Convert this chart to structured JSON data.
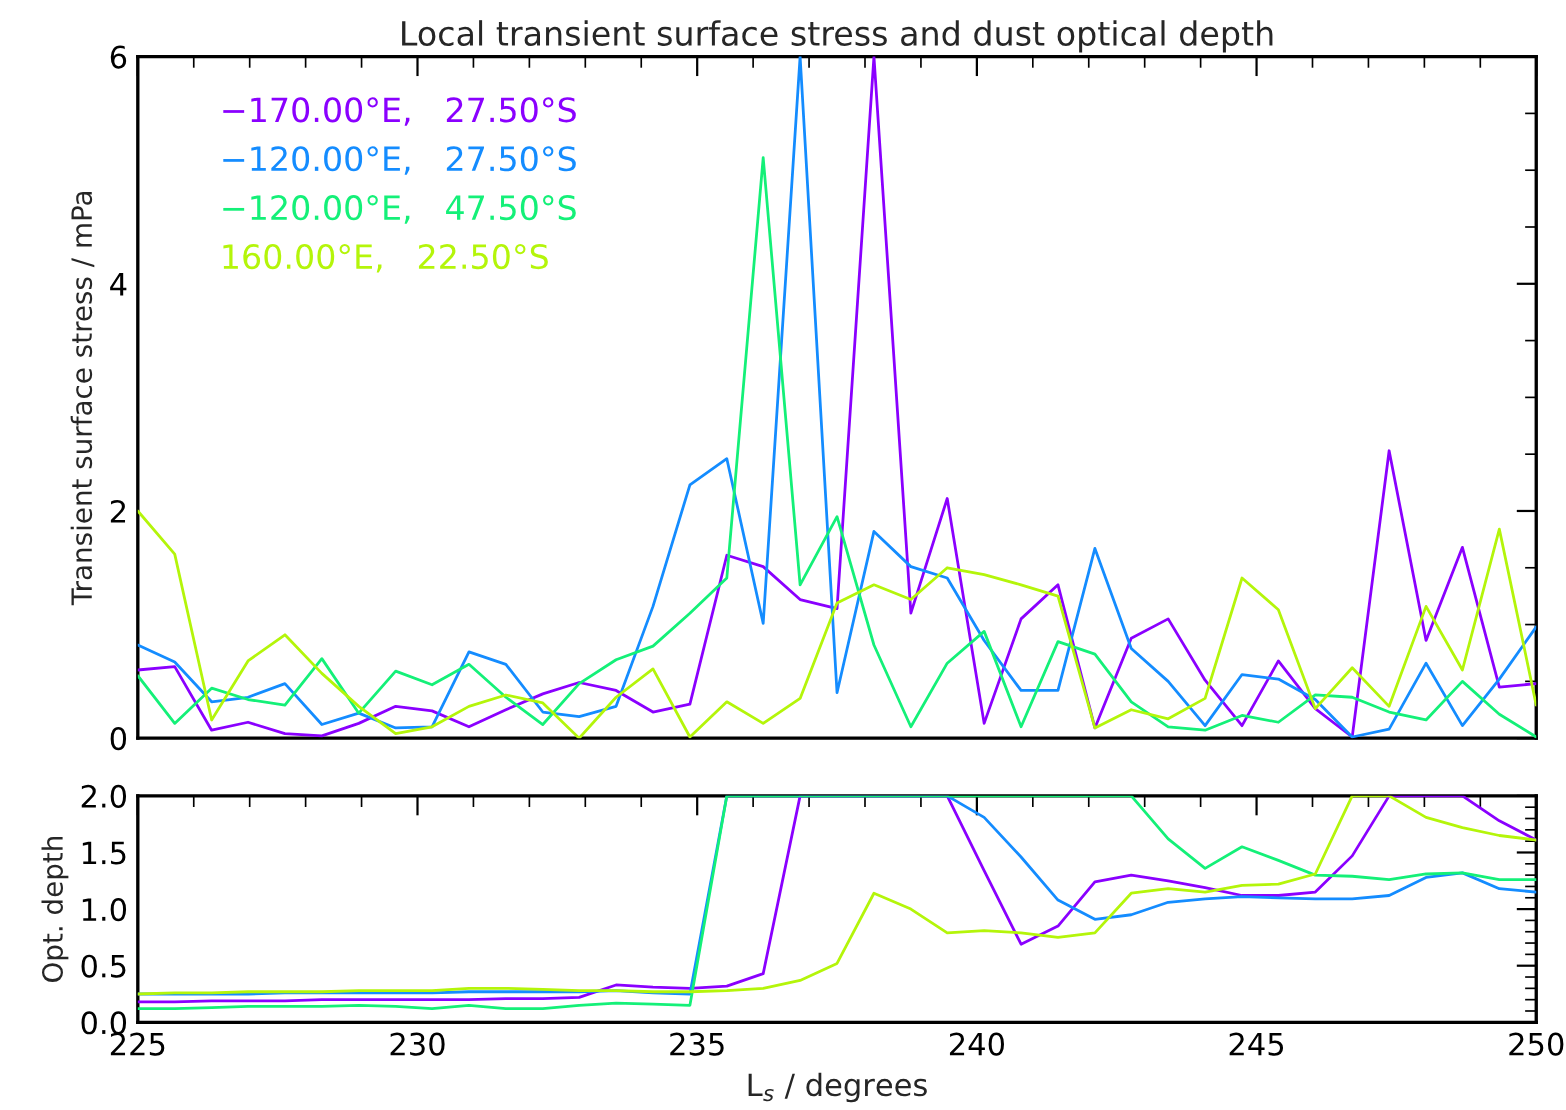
{
  "chart_data": [
    {
      "type": "line",
      "title": "Local transient surface stress and dust optical depth",
      "ylabel": "Transient surface stress / mPa",
      "x": [
        225.0,
        225.66,
        226.32,
        226.97,
        227.63,
        228.29,
        228.95,
        229.61,
        230.26,
        230.92,
        231.58,
        232.24,
        232.89,
        233.55,
        234.21,
        234.87,
        235.53,
        236.18,
        236.84,
        237.5,
        238.16,
        238.82,
        239.47,
        240.13,
        240.79,
        241.45,
        242.11,
        242.76,
        243.42,
        244.08,
        244.74,
        245.39,
        246.05,
        246.71,
        247.37,
        248.03,
        248.68,
        249.34,
        250.0
      ],
      "xlim": [
        225,
        250
      ],
      "xticks": [
        225,
        230,
        235,
        240,
        245,
        250
      ],
      "ylim": [
        0,
        6
      ],
      "yticks": [
        0,
        2,
        4,
        6
      ],
      "tick_labels": "y",
      "legend": "top left",
      "grid": false,
      "series": [
        {
          "name": "−170.00°E,   27.50°S",
          "color": "#8a00ff",
          "values": [
            0.6,
            0.63,
            0.07,
            0.14,
            0.04,
            0.02,
            0.13,
            0.28,
            0.24,
            0.1,
            0.25,
            0.39,
            0.49,
            0.42,
            0.23,
            0.3,
            1.61,
            1.51,
            1.22,
            1.14,
            6.0,
            1.1,
            2.11,
            0.13,
            1.05,
            1.35,
            0.09,
            0.88,
            1.05,
            0.51,
            0.11,
            0.68,
            0.26,
            0.01,
            2.53,
            0.86,
            1.68,
            0.45,
            0.48
          ]
        },
        {
          "name": "−120.00°E,   27.50°S",
          "color": "#148cff",
          "values": [
            0.82,
            0.67,
            0.32,
            0.36,
            0.48,
            0.12,
            0.22,
            0.09,
            0.1,
            0.76,
            0.65,
            0.23,
            0.19,
            0.28,
            1.16,
            2.23,
            2.46,
            1.01,
            6.0,
            0.4,
            1.82,
            1.51,
            1.41,
            0.86,
            0.42,
            0.42,
            1.67,
            0.79,
            0.5,
            0.11,
            0.56,
            0.52,
            0.34,
            0.01,
            0.08,
            0.66,
            0.11,
            0.52,
            0.98
          ]
        },
        {
          "name": "−120.00°E,   47.50°S",
          "color": "#14f078",
          "values": [
            0.55,
            0.13,
            0.44,
            0.34,
            0.29,
            0.7,
            0.22,
            0.59,
            0.47,
            0.65,
            0.36,
            0.12,
            0.48,
            0.69,
            0.81,
            1.1,
            1.41,
            5.11,
            1.35,
            1.95,
            0.82,
            0.1,
            0.66,
            0.94,
            0.1,
            0.85,
            0.74,
            0.32,
            0.1,
            0.07,
            0.2,
            0.14,
            0.38,
            0.36,
            0.23,
            0.16,
            0.5,
            0.21,
            0.01
          ]
        },
        {
          "name": "160.00°E,   22.50°S",
          "color": "#b4f50a",
          "values": [
            2.0,
            1.62,
            0.16,
            0.68,
            0.91,
            0.57,
            0.28,
            0.04,
            0.1,
            0.28,
            0.38,
            0.31,
            0.0,
            0.36,
            0.61,
            0.01,
            0.32,
            0.13,
            0.35,
            1.19,
            1.35,
            1.22,
            1.5,
            1.44,
            1.35,
            1.25,
            0.09,
            0.25,
            0.17,
            0.35,
            1.41,
            1.13,
            0.26,
            0.62,
            0.28,
            1.16,
            0.6,
            1.84,
            0.29
          ]
        }
      ]
    },
    {
      "type": "line",
      "xlabel": "L$_{s}$ / degrees",
      "ylabel": "Opt. depth",
      "x": [
        225.0,
        225.66,
        226.32,
        226.97,
        227.63,
        228.29,
        228.95,
        229.61,
        230.26,
        230.92,
        231.58,
        232.24,
        232.89,
        233.55,
        234.21,
        234.87,
        235.53,
        236.18,
        236.84,
        237.5,
        238.16,
        238.82,
        239.47,
        240.13,
        240.79,
        241.45,
        242.11,
        242.76,
        243.42,
        244.08,
        244.74,
        245.39,
        246.05,
        246.71,
        247.37,
        248.03,
        248.68,
        249.34,
        250.0
      ],
      "xlim": [
        225,
        250
      ],
      "xticks": [
        225,
        230,
        235,
        240,
        245,
        250
      ],
      "ylim": [
        0,
        2
      ],
      "yticks": [
        {
          "value": 0,
          "label": "0.0"
        },
        0.5,
        {
          "value": 1,
          "label": "1.0"
        },
        1.5,
        {
          "value": 2,
          "label": "2.0"
        }
      ],
      "grid": false,
      "series": [
        {
          "color": "#8a00ff",
          "values": [
            0.18,
            0.18,
            0.19,
            0.19,
            0.19,
            0.2,
            0.2,
            0.2,
            0.2,
            0.2,
            0.21,
            0.21,
            0.22,
            0.33,
            0.31,
            0.3,
            0.32,
            0.43,
            2.0,
            null,
            null,
            null,
            2.0,
            1.34,
            0.69,
            0.85,
            1.24,
            1.3,
            1.25,
            1.19,
            1.12,
            1.12,
            1.15,
            1.47,
            2.0,
            null,
            2.0,
            1.78,
            1.61
          ]
        },
        {
          "color": "#148cff",
          "values": [
            0.25,
            0.25,
            0.25,
            0.25,
            0.26,
            0.26,
            0.26,
            0.26,
            0.26,
            0.27,
            0.27,
            0.27,
            0.27,
            0.28,
            0.26,
            0.25,
            2.0,
            null,
            null,
            null,
            null,
            null,
            2.0,
            1.81,
            1.46,
            1.08,
            0.91,
            0.95,
            1.06,
            1.09,
            1.11,
            1.1,
            1.09,
            1.09,
            1.12,
            1.28,
            1.32,
            1.18,
            1.15
          ]
        },
        {
          "color": "#14f078",
          "values": [
            0.12,
            0.12,
            0.13,
            0.14,
            0.14,
            0.14,
            0.15,
            0.14,
            0.12,
            0.15,
            0.12,
            0.12,
            0.15,
            0.17,
            0.16,
            0.15,
            2.0,
            null,
            null,
            null,
            null,
            null,
            null,
            null,
            null,
            null,
            null,
            2.0,
            1.62,
            1.36,
            1.55,
            1.43,
            1.3,
            1.29,
            1.26,
            1.31,
            1.32,
            1.26,
            1.26
          ]
        },
        {
          "color": "#b4f50a",
          "values": [
            0.25,
            0.26,
            0.26,
            0.27,
            0.27,
            0.27,
            0.28,
            0.28,
            0.28,
            0.3,
            0.3,
            0.29,
            0.28,
            0.28,
            0.27,
            0.27,
            0.28,
            0.3,
            0.37,
            0.52,
            1.14,
            1.0,
            0.79,
            0.81,
            0.79,
            0.75,
            0.79,
            1.14,
            1.18,
            1.15,
            1.21,
            1.22,
            1.31,
            2.0,
            2.0,
            1.81,
            1.72,
            1.65,
            1.61
          ]
        }
      ]
    }
  ]
}
